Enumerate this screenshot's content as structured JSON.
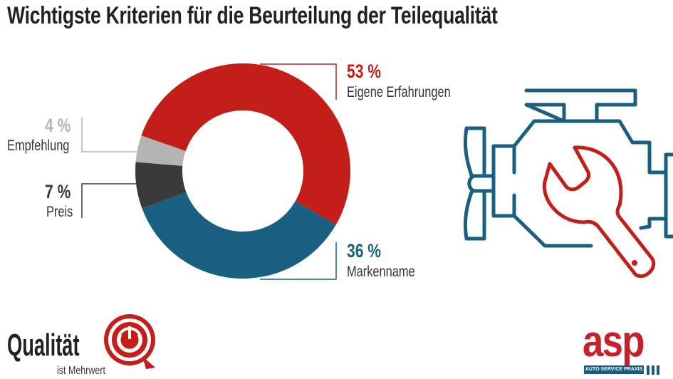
{
  "title": "Wichtigste Kriterien für die Beurteilung der Teilequalität",
  "chart_data": {
    "type": "pie",
    "variant": "donut",
    "categories": [
      "Eigene Erfahrungen",
      "Markenname",
      "Preis",
      "Empfehlung"
    ],
    "values": [
      53,
      36,
      7,
      4
    ],
    "value_labels": [
      "53 %",
      "36 %",
      "7 %",
      "4 %"
    ],
    "colors": [
      "#c41e1a",
      "#185f82",
      "#3a3a3a",
      "#b4b4b4"
    ],
    "unit": "%"
  },
  "logos": {
    "left_main": "Qualität",
    "left_sub": "ist Mehrwert",
    "right_main": "asp",
    "right_sub": "AUTO SERVICE PRAXIS"
  },
  "icons": [
    "engine-icon",
    "wrench-icon"
  ],
  "colors": {
    "accent_red": "#c41e1a",
    "accent_blue": "#185f82"
  }
}
